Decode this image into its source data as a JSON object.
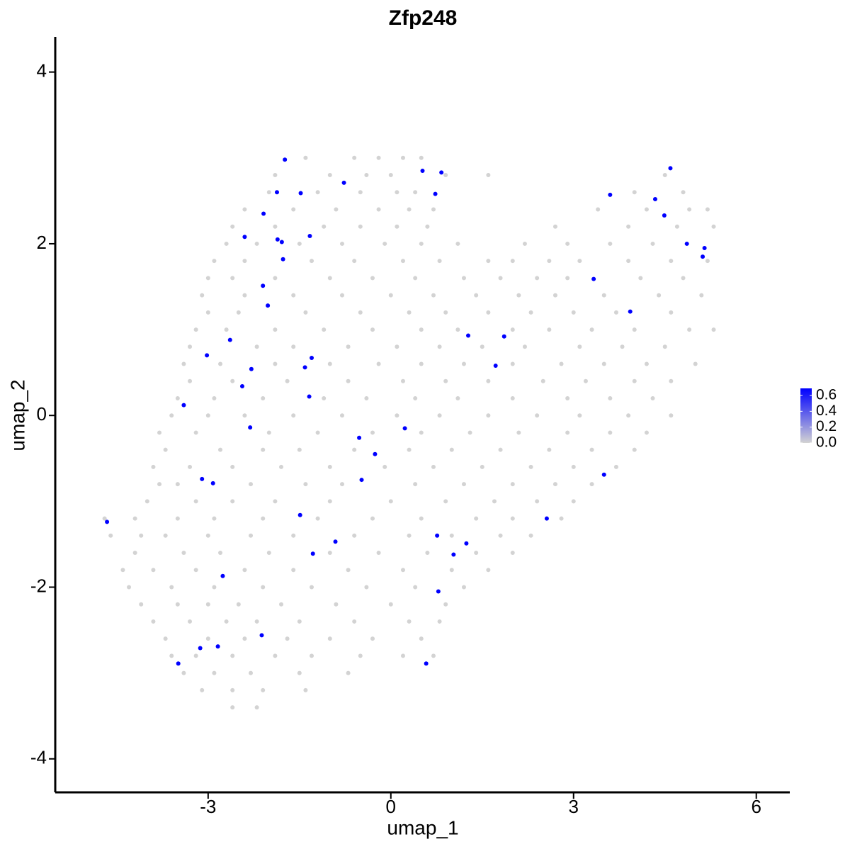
{
  "chart_data": {
    "type": "scatter",
    "title": "Zfp248",
    "x_label": "umap_1",
    "y_label": "umap_2",
    "xlim": [
      -5.51,
      6.55
    ],
    "ylim": [
      -4.39,
      4.41
    ],
    "xticks": [
      -3,
      0,
      3,
      6
    ],
    "yticks": [
      -4,
      -2,
      0,
      2,
      4
    ],
    "low_color": "#d3d3d3",
    "high_color": "#0000ff",
    "clim": [
      0,
      0.69
    ],
    "cticks": [
      {
        "value": 0,
        "label": "0.0"
      },
      {
        "value": 0.2,
        "label": "0.2"
      },
      {
        "value": 0.4,
        "label": "0.4"
      },
      {
        "value": 0.6,
        "label": "0.6"
      }
    ],
    "x": [
      -1.4,
      -0.6,
      -0.2,
      0.2,
      0.5,
      -1.9,
      -1.0,
      -0.4,
      0.0,
      0.9,
      1.6,
      4.5,
      -2.0,
      -1.2,
      -0.5,
      0.1,
      0.4,
      4.0,
      4.8,
      -2.4,
      -1.6,
      -0.9,
      -0.2,
      0.3,
      0.7,
      3.4,
      4.2,
      4.9,
      5.2,
      -2.6,
      -1.9,
      -1.1,
      -0.5,
      0.1,
      0.6,
      2.7,
      3.9,
      4.7,
      5.3,
      -2.7,
      -2.2,
      -1.5,
      -0.8,
      -0.1,
      0.5,
      1.1,
      2.2,
      2.9,
      3.6,
      4.3,
      -2.9,
      -2.4,
      -1.3,
      -0.6,
      0.2,
      0.8,
      1.6,
      2.0,
      2.6,
      3.1,
      3.9,
      4.6,
      5.2,
      -3.0,
      -2.6,
      -1.9,
      -1.0,
      -0.3,
      0.4,
      1.2,
      1.8,
      2.4,
      2.9,
      4.1,
      4.8,
      -3.1,
      -2.4,
      -1.6,
      -0.8,
      0.0,
      0.7,
      1.4,
      2.1,
      2.7,
      3.5,
      4.4,
      5.1,
      -3.0,
      -2.5,
      -1.4,
      -0.5,
      0.3,
      0.9,
      1.6,
      2.3,
      3.0,
      3.7,
      4.6,
      -3.2,
      -2.7,
      -1.9,
      -1.1,
      -0.3,
      0.5,
      1.1,
      2.0,
      2.6,
      3.3,
      4.0,
      4.9,
      5.3,
      -3.3,
      -2.2,
      -1.6,
      -0.7,
      0.1,
      0.8,
      1.5,
      2.2,
      3.1,
      3.8,
      4.5,
      -3.4,
      -2.8,
      -1.9,
      -1.0,
      -0.2,
      0.5,
      1.2,
      2.0,
      2.8,
      3.5,
      4.2,
      5.0,
      -3.3,
      -2.6,
      -1.7,
      -0.7,
      0.2,
      0.9,
      1.6,
      2.5,
      3.2,
      4.0,
      4.6,
      -3.5,
      -2.9,
      -2.1,
      -1.1,
      -0.4,
      0.4,
      1.1,
      2.0,
      2.9,
      3.6,
      4.3,
      -3.6,
      -3.0,
      -2.4,
      -1.6,
      -0.8,
      0.1,
      0.8,
      1.6,
      2.4,
      3.1,
      3.9,
      4.6,
      -3.8,
      -3.2,
      -2.0,
      -1.2,
      -0.3,
      0.5,
      1.3,
      2.1,
      2.9,
      3.6,
      4.2,
      -3.7,
      -2.8,
      -2.1,
      -1.5,
      -0.6,
      0.3,
      1.0,
      1.8,
      2.6,
      3.3,
      4.0,
      -3.9,
      -3.3,
      -2.6,
      -1.8,
      -1.0,
      -0.1,
      0.7,
      1.5,
      2.3,
      3.0,
      3.7,
      -3.8,
      -3.5,
      -2.3,
      -1.4,
      -0.8,
      0.4,
      1.2,
      2.0,
      2.7,
      3.3,
      -4.0,
      -3.2,
      -2.6,
      -1.9,
      -1.0,
      0.0,
      0.9,
      1.7,
      2.4,
      3.0,
      -4.2,
      -3.5,
      -2.9,
      -2.1,
      -1.2,
      -0.3,
      0.5,
      1.4,
      2.0,
      2.8,
      -4.1,
      -3.7,
      -3.0,
      -2.3,
      -1.6,
      -0.6,
      0.3,
      1.0,
      1.8,
      2.3,
      -4.2,
      -3.4,
      -2.8,
      -2.0,
      -1.0,
      -0.2,
      0.6,
      1.4,
      2.0,
      -4.4,
      -3.9,
      -3.2,
      -2.4,
      -1.6,
      -0.7,
      0.2,
      1.0,
      1.6,
      -4.3,
      -3.6,
      -2.9,
      -2.1,
      -1.3,
      -0.4,
      0.4,
      1.2,
      -4.1,
      -3.5,
      -3.0,
      -2.5,
      -1.8,
      -0.9,
      0.0,
      0.9,
      -3.9,
      -3.3,
      -2.7,
      -2.2,
      -1.5,
      -0.6,
      0.3,
      0.8,
      -3.7,
      -3.0,
      -2.4,
      -1.7,
      -1.0,
      -0.3,
      0.5,
      -3.6,
      -3.2,
      -2.6,
      -1.9,
      -1.3,
      -0.5,
      0.2,
      0.7,
      -3.4,
      -2.9,
      -2.3,
      -1.5,
      -0.7,
      -3.1,
      -2.6,
      -2.1,
      -1.4,
      -2.6,
      -2.2,
      -4.7,
      -4.6,
      -1.74,
      0.52,
      0.83,
      -0.77,
      -1.87,
      -1.48,
      0.73,
      4.59,
      3.6,
      4.34,
      -2.09,
      4.49,
      -2.4,
      -1.86,
      -1.33,
      -1.79,
      -1.77,
      4.86,
      5.15,
      5.12,
      3.33,
      -2.1,
      -2.02,
      3.93,
      1.27,
      1.86,
      -2.64,
      -3.02,
      -1.3,
      -1.41,
      -2.29,
      1.72,
      -2.44,
      -1.34,
      -3.4,
      -2.31,
      0.23,
      -0.52,
      -0.26,
      -3.1,
      -2.92,
      -0.48,
      3.5,
      -4.66,
      -1.49,
      2.56,
      0.76,
      1.24,
      -0.91,
      -1.28,
      1.03,
      -2.76,
      0.78,
      -2.12,
      -2.84,
      -3.13,
      -3.49,
      0.58
    ],
    "y": [
      3.0,
      3.0,
      3.0,
      3.0,
      3.0,
      2.8,
      2.8,
      2.8,
      2.8,
      2.8,
      2.8,
      2.8,
      2.6,
      2.6,
      2.6,
      2.6,
      2.6,
      2.6,
      2.6,
      2.4,
      2.4,
      2.4,
      2.4,
      2.4,
      2.4,
      2.4,
      2.4,
      2.4,
      2.4,
      2.2,
      2.2,
      2.2,
      2.2,
      2.2,
      2.2,
      2.2,
      2.2,
      2.2,
      2.2,
      2.0,
      2.0,
      2.0,
      2.0,
      2.0,
      2.0,
      2.0,
      2.0,
      2.0,
      2.0,
      2.0,
      1.8,
      1.8,
      1.8,
      1.8,
      1.8,
      1.8,
      1.8,
      1.8,
      1.8,
      1.8,
      1.8,
      1.8,
      1.8,
      1.6,
      1.6,
      1.6,
      1.6,
      1.6,
      1.6,
      1.6,
      1.6,
      1.6,
      1.6,
      1.6,
      1.6,
      1.4,
      1.4,
      1.4,
      1.4,
      1.4,
      1.4,
      1.4,
      1.4,
      1.4,
      1.4,
      1.4,
      1.4,
      1.2,
      1.2,
      1.2,
      1.2,
      1.2,
      1.2,
      1.2,
      1.2,
      1.2,
      1.2,
      1.2,
      1.0,
      1.0,
      1.0,
      1.0,
      1.0,
      1.0,
      1.0,
      1.0,
      1.0,
      1.0,
      1.0,
      1.0,
      1.0,
      0.8,
      0.8,
      0.8,
      0.8,
      0.8,
      0.8,
      0.8,
      0.8,
      0.8,
      0.8,
      0.8,
      0.6,
      0.6,
      0.6,
      0.6,
      0.6,
      0.6,
      0.6,
      0.6,
      0.6,
      0.6,
      0.6,
      0.6,
      0.4,
      0.4,
      0.4,
      0.4,
      0.4,
      0.4,
      0.4,
      0.4,
      0.4,
      0.4,
      0.4,
      0.2,
      0.2,
      0.2,
      0.2,
      0.2,
      0.2,
      0.2,
      0.2,
      0.2,
      0.2,
      0.2,
      0.0,
      0.0,
      0.0,
      0.0,
      0.0,
      0.0,
      0.0,
      0.0,
      0.0,
      0.0,
      0.0,
      0.0,
      -0.2,
      -0.2,
      -0.2,
      -0.2,
      -0.2,
      -0.2,
      -0.2,
      -0.2,
      -0.2,
      -0.2,
      -0.2,
      -0.4,
      -0.4,
      -0.4,
      -0.4,
      -0.4,
      -0.4,
      -0.4,
      -0.4,
      -0.4,
      -0.4,
      -0.4,
      -0.6,
      -0.6,
      -0.6,
      -0.6,
      -0.6,
      -0.6,
      -0.6,
      -0.6,
      -0.6,
      -0.6,
      -0.6,
      -0.8,
      -0.8,
      -0.8,
      -0.8,
      -0.8,
      -0.8,
      -0.8,
      -0.8,
      -0.8,
      -0.8,
      -1.0,
      -1.0,
      -1.0,
      -1.0,
      -1.0,
      -1.0,
      -1.0,
      -1.0,
      -1.0,
      -1.0,
      -1.2,
      -1.2,
      -1.2,
      -1.2,
      -1.2,
      -1.2,
      -1.2,
      -1.2,
      -1.2,
      -1.2,
      -1.4,
      -1.4,
      -1.4,
      -1.4,
      -1.4,
      -1.4,
      -1.4,
      -1.4,
      -1.4,
      -1.4,
      -1.6,
      -1.6,
      -1.6,
      -1.6,
      -1.6,
      -1.6,
      -1.6,
      -1.6,
      -1.6,
      -1.8,
      -1.8,
      -1.8,
      -1.8,
      -1.8,
      -1.8,
      -1.8,
      -1.8,
      -1.8,
      -2.0,
      -2.0,
      -2.0,
      -2.0,
      -2.0,
      -2.0,
      -2.0,
      -2.0,
      -2.2,
      -2.2,
      -2.2,
      -2.2,
      -2.2,
      -2.2,
      -2.2,
      -2.2,
      -2.4,
      -2.4,
      -2.4,
      -2.4,
      -2.4,
      -2.4,
      -2.4,
      -2.4,
      -2.6,
      -2.6,
      -2.6,
      -2.6,
      -2.6,
      -2.6,
      -2.6,
      -2.8,
      -2.8,
      -2.8,
      -2.8,
      -2.8,
      -2.8,
      -2.8,
      -2.8,
      -3.0,
      -3.0,
      -3.0,
      -3.0,
      -3.0,
      -3.2,
      -3.2,
      -3.2,
      -3.2,
      -3.4,
      -3.4,
      -1.2,
      -1.4,
      2.98,
      2.85,
      2.83,
      2.71,
      2.6,
      2.59,
      2.58,
      2.88,
      2.57,
      2.52,
      2.35,
      2.33,
      2.08,
      2.05,
      2.09,
      2.02,
      1.82,
      2.0,
      1.95,
      1.85,
      1.59,
      1.51,
      1.28,
      1.21,
      0.93,
      0.92,
      0.88,
      0.7,
      0.67,
      0.56,
      0.54,
      0.58,
      0.34,
      0.22,
      0.12,
      -0.14,
      -0.15,
      -0.26,
      -0.45,
      -0.74,
      -0.79,
      -0.75,
      -0.69,
      -1.24,
      -1.16,
      -1.2,
      -1.4,
      -1.49,
      -1.47,
      -1.61,
      -1.62,
      -1.87,
      -2.05,
      -2.56,
      -2.69,
      -2.71,
      -2.89,
      -2.89
    ],
    "values": [
      0,
      0,
      0,
      0,
      0,
      0,
      0,
      0,
      0,
      0,
      0,
      0,
      0,
      0,
      0,
      0,
      0,
      0,
      0,
      0,
      0,
      0,
      0,
      0,
      0,
      0,
      0,
      0,
      0,
      0,
      0,
      0,
      0,
      0,
      0,
      0,
      0,
      0,
      0,
      0,
      0,
      0,
      0,
      0,
      0,
      0,
      0,
      0,
      0,
      0,
      0,
      0,
      0,
      0,
      0,
      0,
      0,
      0,
      0,
      0,
      0,
      0,
      0,
      0,
      0,
      0,
      0,
      0,
      0,
      0,
      0,
      0,
      0,
      0,
      0,
      0,
      0,
      0,
      0,
      0,
      0,
      0,
      0,
      0,
      0,
      0,
      0,
      0,
      0,
      0,
      0,
      0,
      0,
      0,
      0,
      0,
      0,
      0,
      0,
      0,
      0,
      0,
      0,
      0,
      0,
      0,
      0,
      0,
      0,
      0,
      0,
      0,
      0,
      0,
      0,
      0,
      0,
      0,
      0,
      0,
      0,
      0,
      0,
      0,
      0,
      0,
      0,
      0,
      0,
      0,
      0,
      0,
      0,
      0,
      0,
      0,
      0,
      0,
      0,
      0,
      0,
      0,
      0,
      0,
      0,
      0,
      0,
      0,
      0,
      0,
      0,
      0,
      0,
      0,
      0,
      0,
      0,
      0,
      0,
      0,
      0,
      0,
      0,
      0,
      0,
      0,
      0,
      0,
      0,
      0,
      0,
      0,
      0,
      0,
      0,
      0,
      0,
      0,
      0,
      0,
      0,
      0,
      0,
      0,
      0,
      0,
      0,
      0,
      0,
      0,
      0,
      0,
      0,
      0,
      0,
      0,
      0,
      0,
      0,
      0,
      0,
      0,
      0,
      0,
      0,
      0,
      0,
      0,
      0,
      0,
      0,
      0,
      0,
      0,
      0,
      0,
      0,
      0,
      0,
      0,
      0,
      0,
      0,
      0,
      0,
      0,
      0,
      0,
      0,
      0,
      0,
      0,
      0,
      0,
      0,
      0,
      0,
      0,
      0,
      0,
      0,
      0,
      0,
      0,
      0,
      0,
      0,
      0,
      0,
      0,
      0,
      0,
      0,
      0,
      0,
      0,
      0,
      0,
      0,
      0,
      0,
      0,
      0,
      0,
      0,
      0,
      0,
      0,
      0,
      0,
      0,
      0,
      0,
      0,
      0,
      0,
      0,
      0,
      0,
      0,
      0,
      0,
      0,
      0,
      0,
      0,
      0,
      0,
      0,
      0,
      0,
      0,
      0,
      0,
      0,
      0,
      0,
      0,
      0,
      0,
      0,
      0,
      0,
      0,
      0,
      0,
      0,
      0,
      0,
      0,
      0,
      0.69,
      0.69,
      0.69,
      0.69,
      0.69,
      0.69,
      0.69,
      0.69,
      0.69,
      0.69,
      0.69,
      0.69,
      0.69,
      0.69,
      0.69,
      0.69,
      0.69,
      0.69,
      0.69,
      0.69,
      0.69,
      0.69,
      0.69,
      0.69,
      0.69,
      0.69,
      0.69,
      0.69,
      0.69,
      0.69,
      0.69,
      0.69,
      0.69,
      0.69,
      0.69,
      0.69,
      0.69,
      0.69,
      0.69,
      0.69,
      0.69,
      0.69,
      0.69,
      0.69,
      0.69,
      0.69,
      0.69,
      0.69,
      0.69,
      0.69,
      0.69,
      0.69,
      0.69,
      0.69,
      0.69,
      0.69,
      0.69,
      0.69
    ]
  }
}
